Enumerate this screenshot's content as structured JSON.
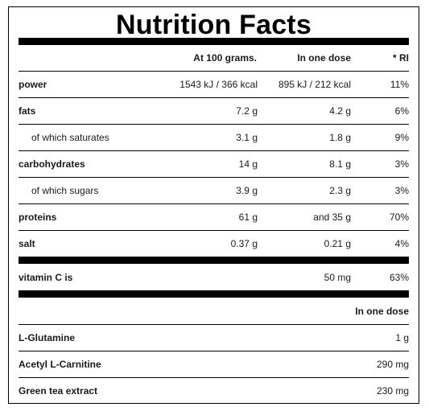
{
  "title": "Nutrition Facts",
  "header": {
    "col1": "At 100 grams.",
    "col2": "In one dose",
    "col3": "* RI"
  },
  "rows": [
    {
      "label": "power",
      "per100": "1543 kJ / 366 kcal",
      "dose": "895 kJ / 212 kcal",
      "ri": "11%"
    },
    {
      "label": "fats",
      "per100": "7.2 g",
      "dose": "4.2 g",
      "ri": "6%"
    },
    {
      "label": "of which saturates",
      "per100": "3.1 g",
      "dose": "1.8 g",
      "ri": "9%"
    },
    {
      "label": "carbohydrates",
      "per100": "14 g",
      "dose": "8.1 g",
      "ri": "3%"
    },
    {
      "label": "of which sugars",
      "per100": "3.9 g",
      "dose": "2.3 g",
      "ri": "3%"
    },
    {
      "label": "proteins",
      "per100": "61 g",
      "dose": "and 35 g",
      "ri": "70%"
    },
    {
      "label": "salt",
      "per100": "0.37 g",
      "dose": "0.21 g",
      "ri": "4%"
    }
  ],
  "vitamin": {
    "label": "vitamin C is",
    "dose": "50 mg",
    "ri": "63%"
  },
  "extras_header": "In one dose",
  "extras": [
    {
      "label": "L-Glutamine",
      "dose": "1 g"
    },
    {
      "label": "Acetyl L-Carnitine",
      "dose": "290 mg"
    },
    {
      "label": "Green tea extract",
      "dose": "230 mg"
    }
  ]
}
